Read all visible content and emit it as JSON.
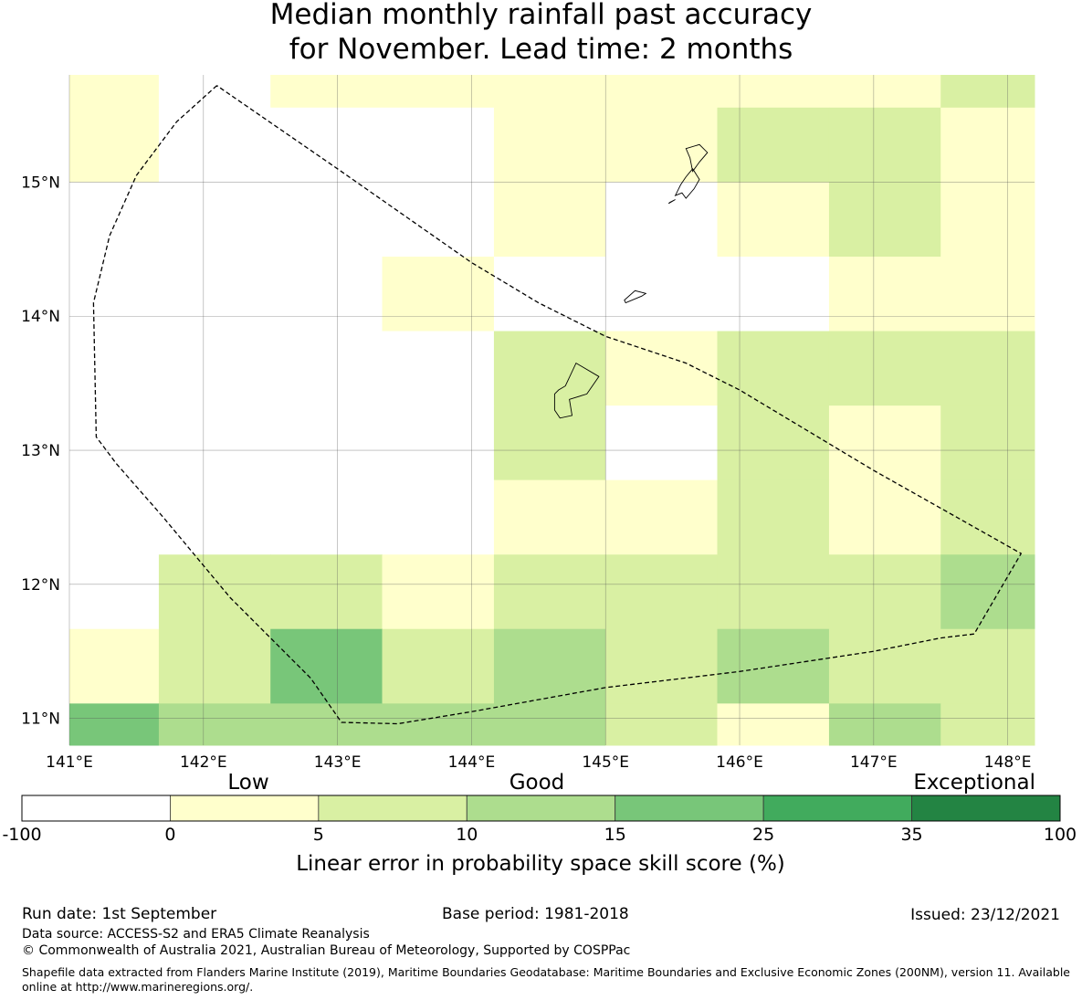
{
  "title": {
    "line1": "Median monthly rainfall past accuracy",
    "line2": "for November. Lead time: 2 months"
  },
  "map": {
    "lon_range": [
      141.0,
      148.2
    ],
    "lat_range": [
      10.8,
      15.8
    ],
    "lon_ticks": [
      {
        "value": 141,
        "label": "141°E"
      },
      {
        "value": 142,
        "label": "142°E"
      },
      {
        "value": 143,
        "label": "143°E"
      },
      {
        "value": 144,
        "label": "144°E"
      },
      {
        "value": 145,
        "label": "145°E"
      },
      {
        "value": 146,
        "label": "146°E"
      },
      {
        "value": 147,
        "label": "147°E"
      },
      {
        "value": 148,
        "label": "148°E"
      }
    ],
    "lat_ticks": [
      {
        "value": 11,
        "label": "11°N"
      },
      {
        "value": 12,
        "label": "12°N"
      },
      {
        "value": 13,
        "label": "13°N"
      },
      {
        "value": 14,
        "label": "14°N"
      },
      {
        "value": 15,
        "label": "15°N"
      }
    ],
    "grid_lines": true,
    "cell_lon_edges": [
      141.0,
      141.667,
      142.5,
      143.333,
      144.167,
      145.0,
      145.833,
      146.667,
      147.5,
      148.2
    ],
    "cell_lat_edges": [
      15.8,
      15.556,
      15.0,
      14.444,
      13.889,
      13.333,
      12.778,
      12.222,
      11.667,
      11.111,
      10.8
    ],
    "cell_classes": [
      [
        1,
        0,
        1,
        1,
        1,
        1,
        1,
        1,
        2
      ],
      [
        1,
        0,
        0,
        0,
        1,
        1,
        2,
        2,
        1
      ],
      [
        0,
        0,
        0,
        0,
        1,
        0,
        1,
        2,
        1
      ],
      [
        0,
        0,
        0,
        1,
        0,
        0,
        0,
        1,
        1
      ],
      [
        0,
        0,
        0,
        0,
        2,
        1,
        2,
        2,
        2
      ],
      [
        0,
        0,
        0,
        0,
        2,
        0,
        2,
        1,
        2
      ],
      [
        0,
        0,
        0,
        0,
        1,
        1,
        2,
        1,
        2
      ],
      [
        0,
        2,
        2,
        1,
        2,
        2,
        2,
        2,
        3
      ],
      [
        1,
        2,
        4,
        2,
        3,
        2,
        3,
        2,
        2
      ],
      [
        4,
        3,
        3,
        3,
        3,
        2,
        1,
        3,
        2
      ]
    ],
    "eez_boundary": [
      [
        142.1,
        15.72
      ],
      [
        141.8,
        15.45
      ],
      [
        141.5,
        15.05
      ],
      [
        141.3,
        14.6
      ],
      [
        141.18,
        14.1
      ],
      [
        141.2,
        13.1
      ],
      [
        141.35,
        12.9
      ],
      [
        141.7,
        12.5
      ],
      [
        142.2,
        11.9
      ],
      [
        142.8,
        11.3
      ],
      [
        143.03,
        10.97
      ],
      [
        143.45,
        10.96
      ],
      [
        144.0,
        11.05
      ],
      [
        145.0,
        11.23
      ],
      [
        146.0,
        11.35
      ],
      [
        147.0,
        11.5
      ],
      [
        147.5,
        11.6
      ],
      [
        147.75,
        11.63
      ],
      [
        148.1,
        12.23
      ],
      [
        147.0,
        12.85
      ],
      [
        146.0,
        13.45
      ],
      [
        145.6,
        13.65
      ],
      [
        145.0,
        13.85
      ],
      [
        144.5,
        14.1
      ],
      [
        144.0,
        14.4
      ],
      [
        143.0,
        15.1
      ],
      [
        142.1,
        15.72
      ]
    ],
    "islands": [
      [
        [
          144.78,
          13.65
        ],
        [
          144.95,
          13.55
        ],
        [
          144.86,
          13.42
        ],
        [
          144.73,
          13.38
        ],
        [
          144.75,
          13.26
        ],
        [
          144.66,
          13.24
        ],
        [
          144.62,
          13.3
        ],
        [
          144.62,
          13.42
        ],
        [
          144.65,
          13.45
        ],
        [
          144.7,
          13.48
        ]
      ],
      [
        [
          145.15,
          14.1
        ],
        [
          145.27,
          14.15
        ],
        [
          145.3,
          14.17
        ],
        [
          145.22,
          14.19
        ],
        [
          145.14,
          14.12
        ]
      ],
      [
        [
          145.6,
          15.25
        ],
        [
          145.7,
          15.28
        ],
        [
          145.76,
          15.22
        ],
        [
          145.7,
          15.15
        ],
        [
          145.65,
          15.08
        ],
        [
          145.63,
          15.18
        ]
      ],
      [
        [
          145.6,
          14.88
        ],
        [
          145.66,
          14.95
        ],
        [
          145.7,
          15.02
        ],
        [
          145.65,
          15.1
        ],
        [
          145.6,
          15.04
        ],
        [
          145.56,
          14.98
        ],
        [
          145.52,
          14.9
        ],
        [
          145.57,
          14.92
        ]
      ],
      [
        [
          145.48,
          14.85
        ],
        [
          145.52,
          14.87
        ],
        [
          145.47,
          14.84
        ]
      ]
    ]
  },
  "legend": {
    "class_colors": [
      "#ffffff",
      "#ffffcc",
      "#d9f0a3",
      "#addd8e",
      "#78c679",
      "#41ab5d",
      "#238443"
    ],
    "bounds": [
      "-100",
      "0",
      "5",
      "10",
      "15",
      "25",
      "35",
      "100"
    ],
    "category_labels": [
      "Low",
      "Good",
      "Exceptional"
    ],
    "axis_label": "Linear error in probability space skill score (%)"
  },
  "footer": {
    "run_date": "Run date: 1st September",
    "base_period": "Base period: 1981-2018",
    "issued": "Issued: 23/12/2021",
    "data_source": "Data source: ACCESS-S2 and ERA5 Climate Reanalysis",
    "copyright": "© Commonwealth of Australia 2021, Australian Bureau of Meteorology, Supported by COSPPac",
    "shapefile": "Shapefile data extracted from Flanders Marine Institute (2019), Maritime Boundaries Geodatabase: Maritime Boundaries and Exclusive Economic Zones (200NM), version 11. Available online at http://www.marineregions.org/."
  }
}
